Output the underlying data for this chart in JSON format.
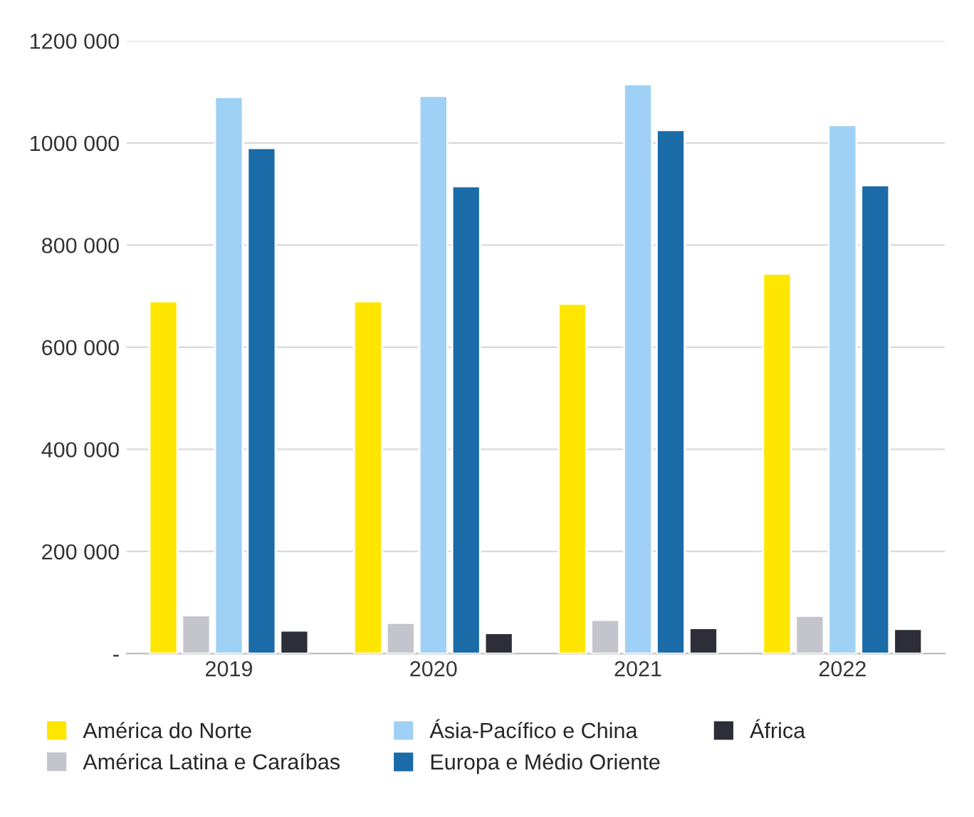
{
  "chart_data": {
    "type": "bar",
    "categories": [
      "2019",
      "2020",
      "2021",
      "2022"
    ],
    "series": [
      {
        "name": "América do Norte",
        "color": "#ffe600",
        "values": [
          690000,
          690000,
          685000,
          744000
        ]
      },
      {
        "name": "América Latina e Caraíbas",
        "color": "#c4c4cd",
        "values": [
          75000,
          60000,
          66000,
          74000
        ]
      },
      {
        "name": "Ásia-Pacífico e China",
        "color": "#9fd0f5",
        "values": [
          1090000,
          1092000,
          1115000,
          1035000
        ]
      },
      {
        "name": "Europa e Médio Oriente",
        "color": "#1a6ba8",
        "values": [
          990000,
          915000,
          1025000,
          917000
        ]
      },
      {
        "name": "África",
        "color": "#2e2e38",
        "values": [
          45000,
          40000,
          50000,
          48000
        ]
      }
    ],
    "ylim": [
      0,
      1200000
    ],
    "yticks": [
      {
        "value": 0,
        "label": "-"
      },
      {
        "value": 200000,
        "label": "200 000"
      },
      {
        "value": 400000,
        "label": "400 000"
      },
      {
        "value": 600000,
        "label": "600 000"
      },
      {
        "value": 800000,
        "label": "800 000"
      },
      {
        "value": 1000000,
        "label": "1000 000"
      },
      {
        "value": 1200000,
        "label": "1200 000"
      }
    ],
    "grid": "y",
    "legend": "bottom"
  }
}
